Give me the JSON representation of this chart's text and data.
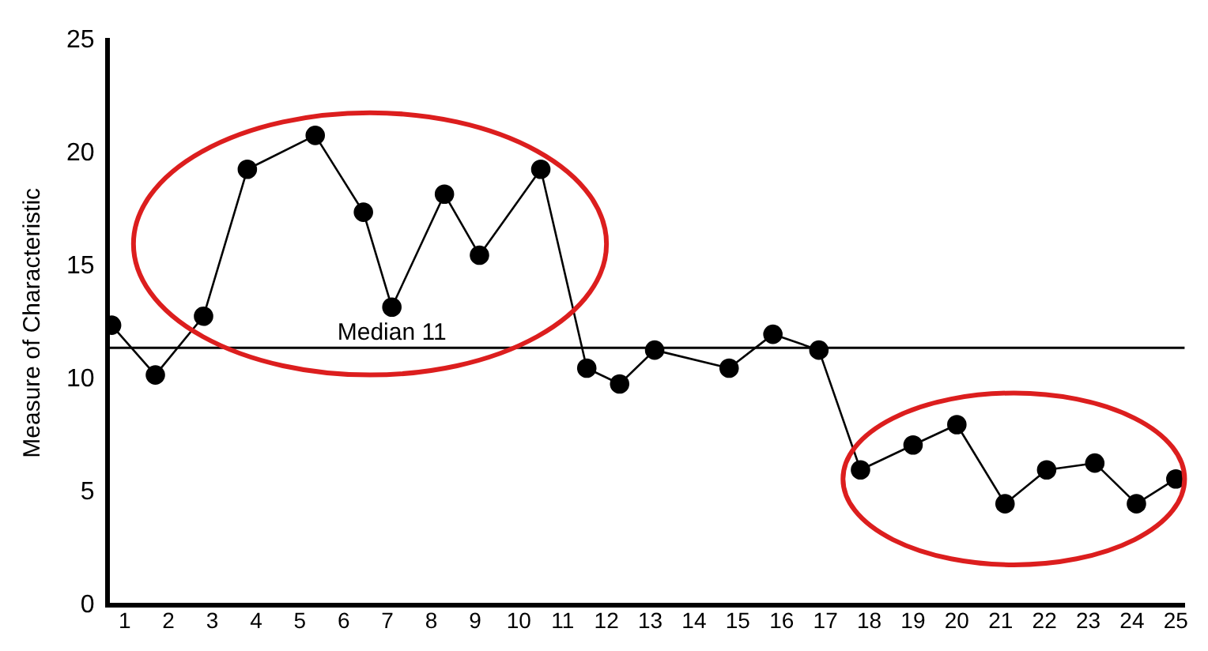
{
  "chart_data": {
    "type": "line",
    "ylabel": "Measure of Characteristic",
    "x": [
      0.7,
      1.7,
      2.8,
      3.8,
      5.35,
      6.45,
      7.1,
      8.3,
      9.1,
      10.5,
      11.55,
      12.3,
      13.1,
      14.8,
      15.8,
      16.85,
      17.8,
      19.0,
      20.0,
      21.1,
      22.05,
      23.15,
      24.1,
      25.0
    ],
    "series": [
      {
        "color": "#000000",
        "values": [
          12.4,
          10.2,
          12.8,
          19.3,
          20.8,
          17.4,
          13.2,
          18.2,
          15.5,
          19.3,
          10.5,
          9.8,
          11.3,
          10.5,
          12.0,
          11.3,
          6.0,
          7.1,
          8.0,
          4.5,
          6.0,
          6.3,
          4.5,
          5.6
        ]
      }
    ],
    "xlim": [
      0.6,
      25.2
    ],
    "xticks": [
      1,
      2,
      3,
      4,
      5,
      6,
      7,
      8,
      9,
      10,
      11,
      12,
      13,
      14,
      15,
      16,
      17,
      18,
      19,
      20,
      21,
      22,
      23,
      24,
      25
    ],
    "ylim": [
      0,
      25
    ],
    "yticks": [
      0,
      5,
      10,
      15,
      20,
      25
    ],
    "ref_lines": [
      {
        "axis": "y",
        "value": 11.4,
        "label": "Median 11",
        "color": "#000000"
      }
    ],
    "grid": false,
    "legend": false,
    "marker": "circle",
    "line_style": "solid"
  }
}
